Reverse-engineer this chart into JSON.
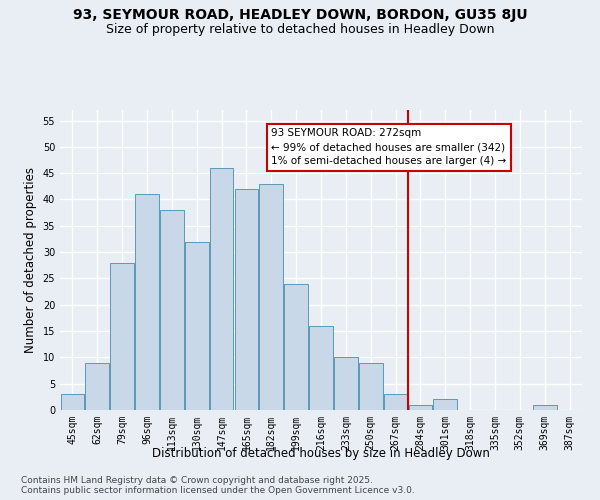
{
  "title1": "93, SEYMOUR ROAD, HEADLEY DOWN, BORDON, GU35 8JU",
  "title2": "Size of property relative to detached houses in Headley Down",
  "xlabel": "Distribution of detached houses by size in Headley Down",
  "ylabel": "Number of detached properties",
  "categories": [
    "45sqm",
    "62sqm",
    "79sqm",
    "96sqm",
    "113sqm",
    "130sqm",
    "147sqm",
    "165sqm",
    "182sqm",
    "199sqm",
    "216sqm",
    "233sqm",
    "250sqm",
    "267sqm",
    "284sqm",
    "301sqm",
    "318sqm",
    "335sqm",
    "352sqm",
    "369sqm",
    "387sqm"
  ],
  "values": [
    3,
    9,
    28,
    41,
    38,
    32,
    46,
    42,
    43,
    24,
    16,
    10,
    9,
    3,
    1,
    2,
    0,
    0,
    0,
    1,
    0
  ],
  "bar_color": "#c8d8e8",
  "bar_edge_color": "#5a9ab5",
  "vline_x": 13.5,
  "vline_color": "#cc0000",
  "annotation_text": "93 SEYMOUR ROAD: 272sqm\n← 99% of detached houses are smaller (342)\n1% of semi-detached houses are larger (4) →",
  "annotation_box_color": "#cc0000",
  "ylim": [
    0,
    57
  ],
  "yticks": [
    0,
    5,
    10,
    15,
    20,
    25,
    30,
    35,
    40,
    45,
    50,
    55
  ],
  "background_color": "#e8eef4",
  "grid_color": "#ffffff",
  "footer_text": "Contains HM Land Registry data © Crown copyright and database right 2025.\nContains public sector information licensed under the Open Government Licence v3.0.",
  "title1_fontsize": 10,
  "title2_fontsize": 9,
  "xlabel_fontsize": 8.5,
  "ylabel_fontsize": 8.5,
  "tick_fontsize": 7,
  "annotation_fontsize": 7.5,
  "footer_fontsize": 6.5
}
